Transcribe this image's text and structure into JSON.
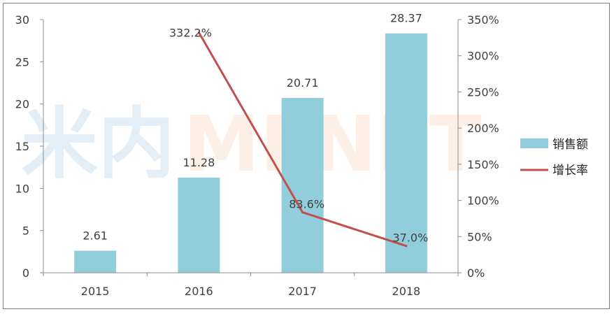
{
  "watermark": {
    "left_text": "米内",
    "right_text": "MENET"
  },
  "colors": {
    "bar": "#92cddc",
    "line": "#c0504d",
    "axis": "#8c8c8c",
    "text": "#404040"
  },
  "chart_data": {
    "type": "bar",
    "categories": [
      "2015",
      "2016",
      "2017",
      "2018"
    ],
    "series": [
      {
        "name": "销售额",
        "type": "bar",
        "axis": "left",
        "values": [
          2.61,
          11.28,
          20.71,
          28.37
        ],
        "labels": [
          "2.61",
          "11.28",
          "20.71",
          "28.37"
        ]
      },
      {
        "name": "增长率",
        "type": "line",
        "axis": "right",
        "values": [
          null,
          332.2,
          83.6,
          37.0
        ],
        "labels": [
          "",
          "332.2%",
          "83.6%",
          "37.0%"
        ]
      }
    ],
    "y_left": {
      "min": 0,
      "max": 30,
      "step": 5,
      "ticks": [
        "0",
        "5",
        "10",
        "15",
        "20",
        "25",
        "30"
      ]
    },
    "y_right": {
      "min": 0,
      "max": 350,
      "step": 50,
      "ticks": [
        "0%",
        "50%",
        "100%",
        "150%",
        "200%",
        "250%",
        "300%",
        "350%"
      ]
    },
    "legend_position": "right",
    "grid": false,
    "title": "",
    "xlabel": "",
    "ylabel": ""
  }
}
